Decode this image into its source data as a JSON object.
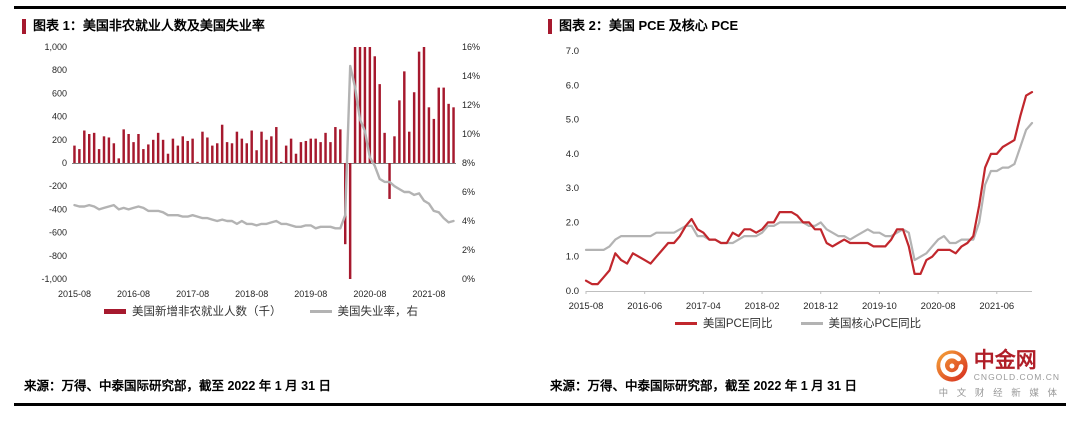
{
  "page": {
    "figure1": {
      "title": "图表 1：美国非农就业人数及美国失业率",
      "source": "来源：万得、中泰国际研究部，截至 2022 年 1 月 31 日"
    },
    "figure2": {
      "title": "图表 2：美国 PCE 及核心 PCE",
      "source": "来源：万得、中泰国际研究部，截至 2022 年 1 月 31 日"
    },
    "logo": {
      "name": "中金网",
      "domain": "CNGOLD.COM.CN",
      "tagline": "中 文 财 经 新 媒 体"
    }
  },
  "chart_data": [
    {
      "type": "bar",
      "title": "美国非农就业人数及美国失业率",
      "x_tick_labels": [
        "2015-08",
        "2016-08",
        "2017-08",
        "2018-08",
        "2019-08",
        "2020-08",
        "2021-08"
      ],
      "x_tick_index": [
        0,
        12,
        24,
        36,
        48,
        60,
        72
      ],
      "left_axis": {
        "min": -1000,
        "max": 1000,
        "step": 200
      },
      "right_axis": {
        "min": 0,
        "max": 16,
        "step": 2,
        "unit": "%"
      },
      "grid": false,
      "legend_position": "bottom",
      "x": [
        "2015-08",
        "2015-09",
        "2015-10",
        "2015-11",
        "2015-12",
        "2016-01",
        "2016-02",
        "2016-03",
        "2016-04",
        "2016-05",
        "2016-06",
        "2016-07",
        "2016-08",
        "2016-09",
        "2016-10",
        "2016-11",
        "2016-12",
        "2017-01",
        "2017-02",
        "2017-03",
        "2017-04",
        "2017-05",
        "2017-06",
        "2017-07",
        "2017-08",
        "2017-09",
        "2017-10",
        "2017-11",
        "2017-12",
        "2018-01",
        "2018-02",
        "2018-03",
        "2018-04",
        "2018-05",
        "2018-06",
        "2018-07",
        "2018-08",
        "2018-09",
        "2018-10",
        "2018-11",
        "2018-12",
        "2019-01",
        "2019-02",
        "2019-03",
        "2019-04",
        "2019-05",
        "2019-06",
        "2019-07",
        "2019-08",
        "2019-09",
        "2019-10",
        "2019-11",
        "2019-12",
        "2020-01",
        "2020-02",
        "2020-03",
        "2020-04",
        "2020-05",
        "2020-06",
        "2020-07",
        "2020-08",
        "2020-09",
        "2020-10",
        "2020-11",
        "2020-12",
        "2021-01",
        "2021-02",
        "2021-03",
        "2021-04",
        "2021-05",
        "2021-06",
        "2021-07",
        "2021-08",
        "2021-09",
        "2021-10",
        "2021-11",
        "2021-12",
        "2022-01"
      ],
      "series": [
        {
          "name": "美国新增非农就业人数（千）",
          "type": "bar",
          "axis": "left",
          "color": "#a6192e",
          "values": [
            150,
            120,
            280,
            250,
            260,
            120,
            230,
            220,
            170,
            40,
            290,
            250,
            180,
            250,
            120,
            160,
            200,
            260,
            200,
            80,
            210,
            150,
            230,
            190,
            210,
            10,
            270,
            220,
            150,
            170,
            330,
            180,
            170,
            270,
            210,
            170,
            280,
            110,
            270,
            200,
            230,
            310,
            10,
            150,
            210,
            80,
            180,
            190,
            210,
            210,
            180,
            260,
            180,
            310,
            290,
            -700,
            -1000,
            1000,
            1000,
            1000,
            1000,
            920,
            680,
            260,
            -310,
            230,
            540,
            790,
            270,
            610,
            960,
            1000,
            480,
            380,
            650,
            650,
            510,
            480
          ]
        },
        {
          "name": "美国失业率，右",
          "type": "line",
          "axis": "right",
          "color": "#b3b3b3",
          "values": [
            5.1,
            5.0,
            5.0,
            5.1,
            5.0,
            4.8,
            4.9,
            5.0,
            5.1,
            4.8,
            4.9,
            4.8,
            4.9,
            5.0,
            4.9,
            4.7,
            4.7,
            4.7,
            4.6,
            4.4,
            4.4,
            4.4,
            4.3,
            4.3,
            4.4,
            4.3,
            4.2,
            4.2,
            4.1,
            4.0,
            4.1,
            4.0,
            4.0,
            3.8,
            4.0,
            3.8,
            3.8,
            3.7,
            3.8,
            3.8,
            3.9,
            4.0,
            3.8,
            3.8,
            3.7,
            3.6,
            3.6,
            3.7,
            3.7,
            3.5,
            3.6,
            3.6,
            3.6,
            3.5,
            3.5,
            4.4,
            14.7,
            13.2,
            11.0,
            10.2,
            8.4,
            7.8,
            6.9,
            6.7,
            6.7,
            6.4,
            6.2,
            6.0,
            6.0,
            5.8,
            5.9,
            5.4,
            5.2,
            4.7,
            4.6,
            4.2,
            3.9,
            4.0
          ]
        }
      ]
    },
    {
      "type": "line",
      "title": "美国 PCE 及核心 PCE",
      "x_tick_labels": [
        "2015-08",
        "2016-06",
        "2017-04",
        "2018-02",
        "2018-12",
        "2019-10",
        "2020-08",
        "2021-06"
      ],
      "x_tick_index": [
        0,
        10,
        20,
        30,
        40,
        50,
        60,
        70
      ],
      "y_axis": {
        "min": 0,
        "max": 7,
        "step": 1
      },
      "grid": false,
      "legend_position": "bottom",
      "x": [
        "2015-08",
        "2015-09",
        "2015-10",
        "2015-11",
        "2015-12",
        "2016-01",
        "2016-02",
        "2016-03",
        "2016-04",
        "2016-05",
        "2016-06",
        "2016-07",
        "2016-08",
        "2016-09",
        "2016-10",
        "2016-11",
        "2016-12",
        "2017-01",
        "2017-02",
        "2017-03",
        "2017-04",
        "2017-05",
        "2017-06",
        "2017-07",
        "2017-08",
        "2017-09",
        "2017-10",
        "2017-11",
        "2017-12",
        "2018-01",
        "2018-02",
        "2018-03",
        "2018-04",
        "2018-05",
        "2018-06",
        "2018-07",
        "2018-08",
        "2018-09",
        "2018-10",
        "2018-11",
        "2018-12",
        "2019-01",
        "2019-02",
        "2019-03",
        "2019-04",
        "2019-05",
        "2019-06",
        "2019-07",
        "2019-08",
        "2019-09",
        "2019-10",
        "2019-11",
        "2019-12",
        "2020-01",
        "2020-02",
        "2020-03",
        "2020-04",
        "2020-05",
        "2020-06",
        "2020-07",
        "2020-08",
        "2020-09",
        "2020-10",
        "2020-11",
        "2020-12",
        "2021-01",
        "2021-02",
        "2021-03",
        "2021-04",
        "2021-05",
        "2021-06",
        "2021-07",
        "2021-08",
        "2021-09",
        "2021-10",
        "2021-11",
        "2021-12"
      ],
      "series": [
        {
          "name": "美国PCE同比",
          "type": "line",
          "color": "#c1272d",
          "values": [
            0.3,
            0.2,
            0.2,
            0.4,
            0.6,
            1.1,
            0.9,
            0.8,
            1.1,
            1.0,
            0.9,
            0.8,
            1.0,
            1.2,
            1.4,
            1.4,
            1.6,
            1.9,
            2.1,
            1.8,
            1.7,
            1.5,
            1.5,
            1.4,
            1.4,
            1.7,
            1.6,
            1.8,
            1.8,
            1.7,
            1.8,
            2.0,
            2.0,
            2.3,
            2.3,
            2.3,
            2.2,
            2.0,
            2.0,
            1.8,
            1.8,
            1.4,
            1.3,
            1.4,
            1.5,
            1.4,
            1.4,
            1.4,
            1.4,
            1.3,
            1.3,
            1.3,
            1.5,
            1.8,
            1.8,
            1.3,
            0.5,
            0.5,
            0.9,
            1.0,
            1.2,
            1.2,
            1.2,
            1.1,
            1.3,
            1.4,
            1.6,
            2.5,
            3.6,
            4.0,
            4.0,
            4.2,
            4.3,
            4.4,
            5.1,
            5.7,
            5.8
          ]
        },
        {
          "name": "美国核心PCE同比",
          "type": "line",
          "color": "#b3b3b3",
          "values": [
            1.2,
            1.2,
            1.2,
            1.2,
            1.3,
            1.5,
            1.6,
            1.6,
            1.6,
            1.6,
            1.6,
            1.6,
            1.7,
            1.7,
            1.7,
            1.7,
            1.8,
            1.9,
            1.9,
            1.6,
            1.6,
            1.5,
            1.5,
            1.4,
            1.4,
            1.4,
            1.5,
            1.6,
            1.6,
            1.6,
            1.7,
            1.9,
            1.9,
            2.0,
            2.0,
            2.0,
            2.0,
            2.0,
            1.9,
            1.9,
            2.0,
            1.8,
            1.7,
            1.6,
            1.6,
            1.5,
            1.6,
            1.7,
            1.8,
            1.7,
            1.7,
            1.6,
            1.6,
            1.7,
            1.8,
            1.7,
            0.9,
            1.0,
            1.1,
            1.3,
            1.5,
            1.6,
            1.4,
            1.4,
            1.5,
            1.5,
            1.5,
            2.0,
            3.1,
            3.5,
            3.5,
            3.6,
            3.6,
            3.7,
            4.2,
            4.7,
            4.9
          ]
        }
      ]
    }
  ]
}
